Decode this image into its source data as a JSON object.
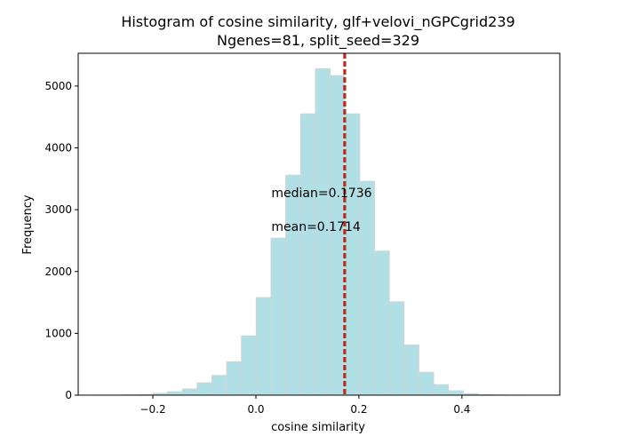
{
  "chart_data": {
    "type": "histogram",
    "title_line1": "Histogram of cosine similarity, glf+velovi_nGPCgrid239",
    "title_line2": "Ngenes=81, split_seed=329",
    "xlabel": "cosine similarity",
    "ylabel": "Frequency",
    "xlim": [
      -0.345,
      0.59
    ],
    "ylim": [
      0,
      5530
    ],
    "xticks": [
      -0.2,
      0.0,
      0.2,
      0.4
    ],
    "xtick_labels": [
      "−0.2",
      "0.0",
      "0.2",
      "0.4"
    ],
    "yticks": [
      0,
      1000,
      2000,
      3000,
      4000,
      5000
    ],
    "ytick_labels": [
      "0",
      "1000",
      "2000",
      "3000",
      "4000",
      "5000"
    ],
    "bin_start": -0.315,
    "bin_width": 0.0287,
    "counts": [
      1,
      2,
      5,
      10,
      30,
      55,
      100,
      200,
      320,
      540,
      960,
      1580,
      2540,
      3560,
      4550,
      5280,
      5170,
      4550,
      3460,
      2330,
      1510,
      810,
      370,
      170,
      70,
      25,
      8,
      3,
      1
    ],
    "bar_color": "#b0e0e6",
    "bar_edge_color": "#d3d3d3",
    "median": {
      "value": 0.1736,
      "label": "median=0.1736",
      "color": "#a0522d"
    },
    "mean": {
      "value": 0.1714,
      "label": "mean=0.1714",
      "color": "#c71a1a"
    },
    "annotation_x": 0.03,
    "median_label_y": 3200,
    "mean_label_y": 2660
  }
}
